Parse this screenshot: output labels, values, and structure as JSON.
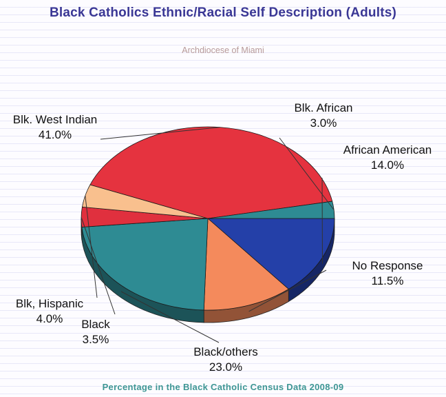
{
  "title": "Black Catholics Ethnic/Racial Self Description (Adults)",
  "subtitle": "Archdiocese of Miami",
  "footer": "Percentage in the Black Catholic Census Data 2008-09",
  "chart_data": {
    "type": "pie",
    "title": "Black Catholics Ethnic/Racial Self Description (Adults)",
    "subtitle": "Archdiocese of Miami",
    "style": "3d",
    "slices": [
      {
        "label": "African American",
        "value": 14.0,
        "value_label": "14.0%",
        "color": "#2440a8"
      },
      {
        "label": "No Response",
        "value": 11.5,
        "value_label": "11.5%",
        "color": "#f48a5c"
      },
      {
        "label": "Black/others",
        "value": 23.0,
        "value_label": "23.0%",
        "color": "#2e8b93"
      },
      {
        "label": "Black",
        "value": 3.5,
        "value_label": "3.5%",
        "color": "#e0303e"
      },
      {
        "label": "Blk, Hispanic",
        "value": 4.0,
        "value_label": "4.0%",
        "color": "#f9c08e"
      },
      {
        "label": "Blk. West Indian",
        "value": 41.0,
        "value_label": "41.0%",
        "color": "#e5333f"
      },
      {
        "label": "Blk. African",
        "value": 3.0,
        "value_label": "3.0%",
        "color": "#2e8b93"
      }
    ]
  }
}
